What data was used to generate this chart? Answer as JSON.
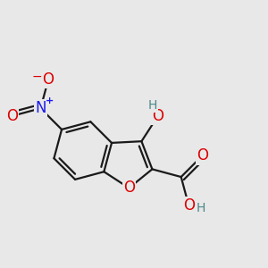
{
  "bg_color": "#e8e8e8",
  "bond_color": "#1a1a1a",
  "bond_lw": 1.6,
  "dbo": 0.014,
  "font_size_atom": 12,
  "font_size_charge": 8,
  "colors": {
    "O": "#dd0000",
    "N": "#1a1aee",
    "H": "#4a8888",
    "bond": "#1a1a1a"
  }
}
